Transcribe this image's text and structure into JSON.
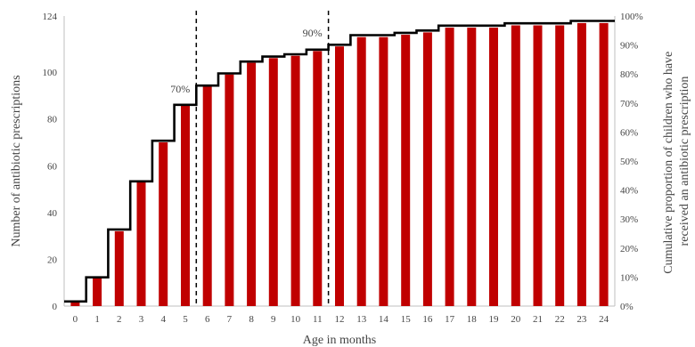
{
  "chart_data": {
    "type": "bar",
    "categories": [
      "0",
      "1",
      "2",
      "3",
      "4",
      "5",
      "6",
      "7",
      "8",
      "9",
      "10",
      "11",
      "12",
      "13",
      "14",
      "15",
      "16",
      "17",
      "18",
      "19",
      "20",
      "21",
      "22",
      "23",
      "24"
    ],
    "series": [
      {
        "values": [
          2,
          12,
          32,
          53,
          70,
          86,
          94,
          99,
          104,
          106,
          107,
          109,
          111,
          115,
          115,
          116,
          117,
          119,
          119,
          119,
          120,
          120,
          120,
          121,
          121
        ],
        "color": "#c00000"
      },
      {
        "values": [
          1.6,
          9.9,
          26.4,
          43.0,
          57.0,
          69.4,
          76.0,
          80.2,
          84.3,
          86.0,
          86.8,
          88.4,
          90.1,
          93.4,
          93.4,
          94.2,
          95.0,
          96.7,
          96.7,
          96.7,
          97.5,
          97.5,
          97.5,
          98.3,
          98.3
        ],
        "color": "#000000",
        "style": "step"
      }
    ],
    "xlabel": "Age in months",
    "ylabel": "Number of antibiotic prescriptions",
    "ylabel_right": "Cumulative proportion of children who have received an antibiotic prescription",
    "ylim": [
      0,
      124
    ],
    "y_ticks": [
      "0",
      "20",
      "40",
      "60",
      "80",
      "100",
      "124"
    ],
    "y2lim": [
      0,
      100
    ],
    "y2_ticks": [
      "0%",
      "10%",
      "20%",
      "30%",
      "40%",
      "50%",
      "60%",
      "70%",
      "80%",
      "90%",
      "100%"
    ],
    "reference_lines": [
      {
        "label": "70%",
        "x_between": [
          "5",
          "6"
        ]
      },
      {
        "label": "90%",
        "x_between": [
          "11",
          "12"
        ]
      }
    ],
    "grid": false,
    "legend": "none"
  }
}
